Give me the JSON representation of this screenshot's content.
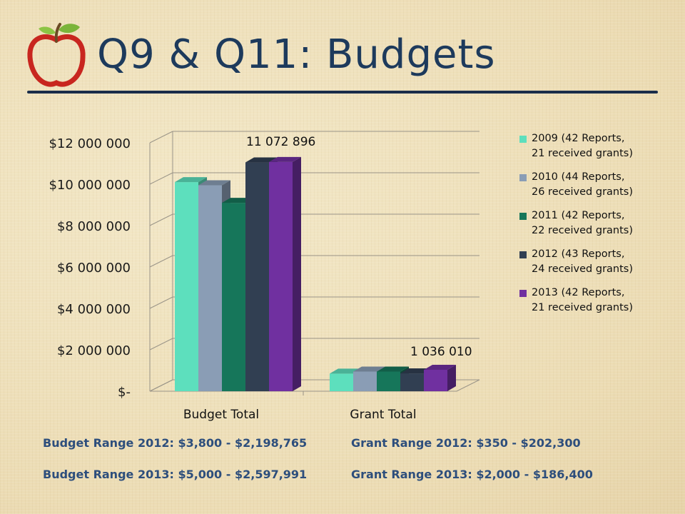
{
  "slide": {
    "title": "Q9 & Q11:  Budgets",
    "logo": "apple-icon"
  },
  "notes": {
    "budget_range_2012": "Budget Range 2012: $3,800 - $2,198,765",
    "grant_range_2012": "Grant Range 2012: $350 - $202,300",
    "budget_range_2013": "Budget Range 2013: $5,000 - $2,597,991",
    "grant_range_2013": "Grant Range 2013: $2,000 - $186,400"
  },
  "chart_data": {
    "type": "bar",
    "style": "3d-clustered-column",
    "categories": [
      "Budget Total",
      "Grant Total"
    ],
    "series": [
      {
        "name": "2009 (42 Reports,\n21 received grants)",
        "values": [
          10100000,
          850000
        ],
        "color": "#5ddfbd"
      },
      {
        "name": "2010 (44 Reports,\n26 received grants)",
        "values": [
          9950000,
          950000
        ],
        "color": "#8a9db5"
      },
      {
        "name": "2011 (42 Reports,\n22 received grants)",
        "values": [
          9100000,
          950000
        ],
        "color": "#16765a"
      },
      {
        "name": "2012 (43 Reports,\n24 received grants)",
        "values": [
          11050000,
          860000
        ],
        "color": "#313f52"
      },
      {
        "name": "2013 (42 Reports,\n21 received grants)",
        "values": [
          11072896,
          1036010
        ],
        "color": "#7030a0"
      }
    ],
    "data_labels": [
      {
        "category": "Budget Total",
        "series": "2013",
        "text": "11 072 896"
      },
      {
        "category": "Grant Total",
        "series": "2013",
        "text": "1 036 010"
      }
    ],
    "y_ticks": [
      0,
      2000000,
      4000000,
      6000000,
      8000000,
      10000000,
      12000000
    ],
    "y_tick_labels": [
      "$-",
      "$2 000 000",
      "$4 000 000",
      "$6 000 000",
      "$8 000 000",
      "$10 000 000",
      "$12 000 000"
    ],
    "ylim": [
      0,
      12000000
    ],
    "grid": true,
    "legend_position": "right",
    "title": "",
    "xlabel": "",
    "ylabel": ""
  }
}
